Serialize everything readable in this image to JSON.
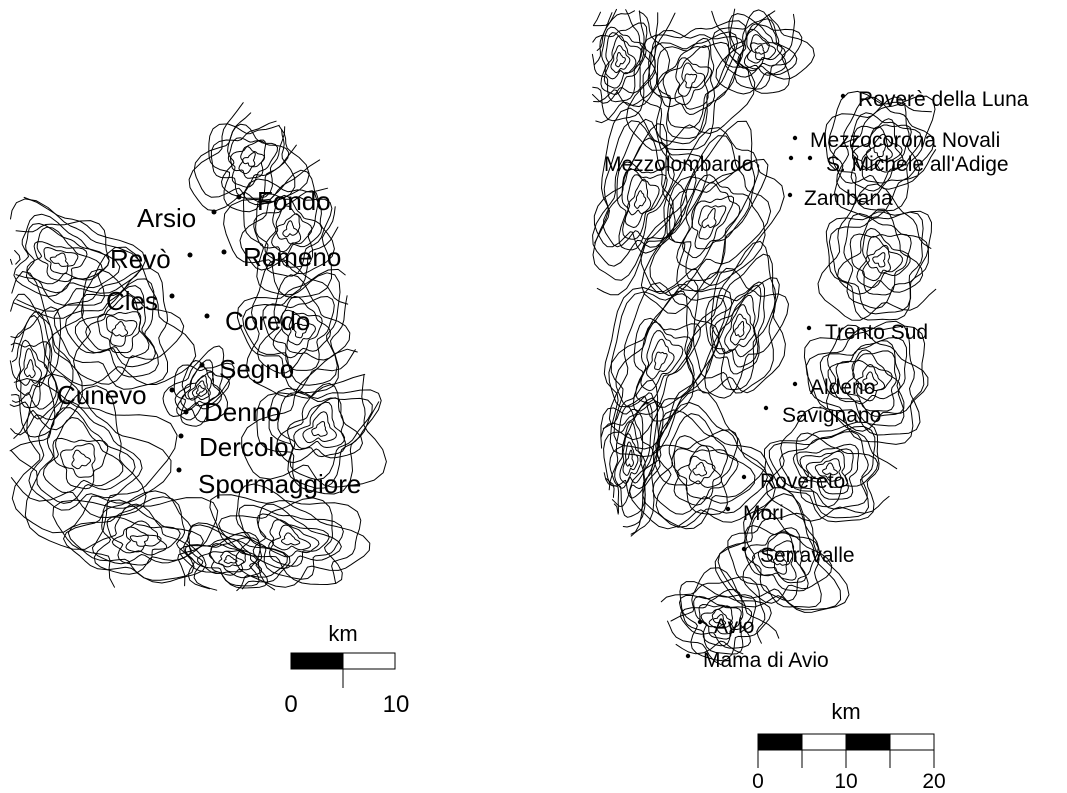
{
  "maps": [
    {
      "id": "left",
      "places": [
        {
          "name": "Fondo"
        },
        {
          "name": "Arsio"
        },
        {
          "name": "Revò"
        },
        {
          "name": "Romeno"
        },
        {
          "name": "Cles"
        },
        {
          "name": "Coredo"
        },
        {
          "name": "Segno"
        },
        {
          "name": "Cunevo"
        },
        {
          "name": "Denno"
        },
        {
          "name": "Dercolo"
        },
        {
          "name": "Spormaggiore"
        }
      ],
      "scale_bar": {
        "unit": "km",
        "ticks": [
          "0",
          "10"
        ]
      }
    },
    {
      "id": "right",
      "places": [
        {
          "name": "Roverè della Luna"
        },
        {
          "name": "Mezzocorona Novali"
        },
        {
          "name": "Mezzolombardo"
        },
        {
          "name": "S. Michele all'Adige"
        },
        {
          "name": "Zambana"
        },
        {
          "name": "Trento Sud"
        },
        {
          "name": "Aldeno"
        },
        {
          "name": "Savignano"
        },
        {
          "name": "Rovereto"
        },
        {
          "name": "Mori"
        },
        {
          "name": "Serravalle"
        },
        {
          "name": "Avio"
        },
        {
          "name": "Mama di Avio"
        }
      ],
      "scale_bar": {
        "unit": "km",
        "ticks": [
          "0",
          "10",
          "20"
        ]
      }
    }
  ]
}
